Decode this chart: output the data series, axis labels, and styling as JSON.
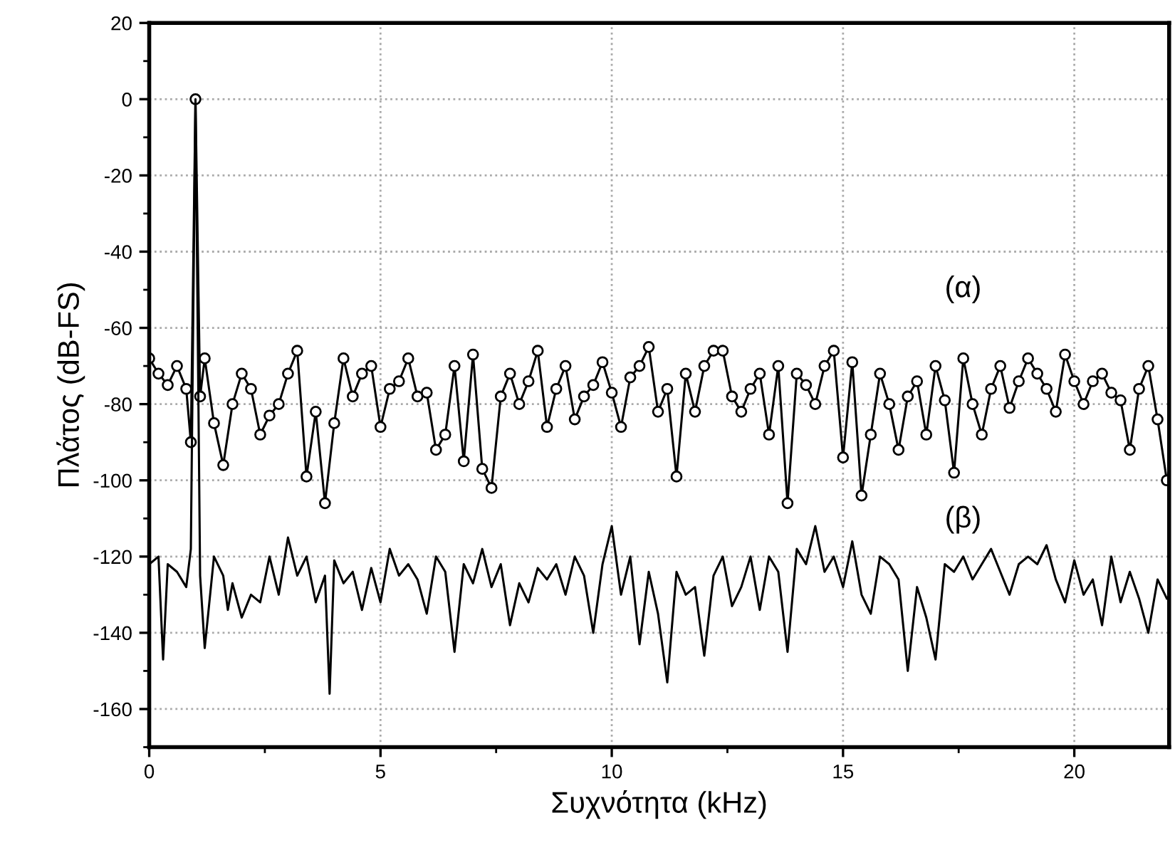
{
  "chart_data": {
    "type": "line",
    "xlabel": "Συχνότητα (kHz)",
    "ylabel": "Πλάτος (dB-FS)",
    "xlim": [
      0,
      22.05
    ],
    "ylim": [
      -170,
      20
    ],
    "xticks": [
      0,
      {
        "value": 2.5,
        "label": null
      },
      5,
      {
        "value": 7.5,
        "label": null
      },
      10,
      {
        "value": 12.5,
        "label": null
      },
      15,
      {
        "value": 17.5,
        "label": null
      },
      20
    ],
    "yticks": [
      {
        "value": -170,
        "label": null
      },
      -160,
      {
        "value": -150,
        "label": null
      },
      -140,
      {
        "value": -130,
        "label": null
      },
      -120,
      {
        "value": -110,
        "label": null
      },
      -100,
      {
        "value": -90,
        "label": null
      },
      -80,
      {
        "value": -70,
        "label": null
      },
      -60,
      {
        "value": -50,
        "label": null
      },
      -40,
      {
        "value": -30,
        "label": null
      },
      -20,
      {
        "value": -10,
        "label": null
      },
      0,
      {
        "value": 10,
        "label": null
      },
      20
    ],
    "grid": true,
    "legend": false,
    "line_style": "solid",
    "annotations": [
      "(α)",
      "(β)"
    ],
    "series": [
      {
        "color": "#000000",
        "marker": "circle",
        "x": [
          0,
          0.2,
          0.4,
          0.6,
          0.8,
          0.9,
          1.0,
          1.1,
          1.2,
          1.4,
          1.6,
          1.8,
          2.0,
          2.2,
          2.4,
          2.6,
          2.8,
          3.0,
          3.2,
          3.4,
          3.6,
          3.8,
          4.0,
          4.2,
          4.4,
          4.6,
          4.8,
          5.0,
          5.2,
          5.4,
          5.6,
          5.8,
          6.0,
          6.2,
          6.4,
          6.6,
          6.8,
          7.0,
          7.2,
          7.4,
          7.6,
          7.8,
          8.0,
          8.2,
          8.4,
          8.6,
          8.8,
          9.0,
          9.2,
          9.4,
          9.6,
          9.8,
          10.0,
          10.2,
          10.4,
          10.6,
          10.8,
          11.0,
          11.2,
          11.4,
          11.6,
          11.8,
          12.0,
          12.2,
          12.4,
          12.6,
          12.8,
          13.0,
          13.2,
          13.4,
          13.6,
          13.8,
          14.0,
          14.2,
          14.4,
          14.6,
          14.8,
          15.0,
          15.2,
          15.4,
          15.6,
          15.8,
          16.0,
          16.2,
          16.4,
          16.6,
          16.8,
          17.0,
          17.2,
          17.4,
          17.6,
          17.8,
          18.0,
          18.2,
          18.4,
          18.6,
          18.8,
          19.0,
          19.2,
          19.4,
          19.6,
          19.8,
          20.0,
          20.2,
          20.4,
          20.6,
          20.8,
          21.0,
          21.2,
          21.4,
          21.6,
          21.8,
          22.0
        ],
        "values": [
          -68,
          -72,
          -75,
          -70,
          -76,
          -90,
          0,
          -78,
          -68,
          -85,
          -96,
          -80,
          -72,
          -76,
          -88,
          -83,
          -80,
          -72,
          -66,
          -99,
          -82,
          -106,
          -85,
          -68,
          -78,
          -72,
          -70,
          -86,
          -76,
          -74,
          -68,
          -78,
          -77,
          -92,
          -88,
          -70,
          -95,
          -67,
          -97,
          -102,
          -78,
          -72,
          -80,
          -74,
          -66,
          -86,
          -76,
          -70,
          -84,
          -78,
          -75,
          -69,
          -77,
          -86,
          -73,
          -70,
          -65,
          -82,
          -76,
          -99,
          -72,
          -82,
          -70,
          -66,
          -66,
          -78,
          -82,
          -76,
          -72,
          -88,
          -70,
          -106,
          -72,
          -75,
          -80,
          -70,
          -66,
          -94,
          -69,
          -104,
          -88,
          -72,
          -80,
          -92,
          -78,
          -74,
          -88,
          -70,
          -79,
          -98,
          -68,
          -80,
          -88,
          -76,
          -70,
          -81,
          -74,
          -68,
          -72,
          -76,
          -82,
          -67,
          -74,
          -80,
          -74,
          -72,
          -77,
          -79,
          -92,
          -76,
          -70,
          -84,
          -100
        ]
      },
      {
        "color": "#000000",
        "marker": "none",
        "x": [
          0,
          0.2,
          0.3,
          0.4,
          0.6,
          0.8,
          0.9,
          1.0,
          1.1,
          1.2,
          1.4,
          1.6,
          1.7,
          1.8,
          2.0,
          2.2,
          2.4,
          2.6,
          2.8,
          3.0,
          3.2,
          3.4,
          3.6,
          3.8,
          3.9,
          4.0,
          4.2,
          4.4,
          4.6,
          4.8,
          5.0,
          5.2,
          5.4,
          5.6,
          5.8,
          6.0,
          6.2,
          6.4,
          6.6,
          6.8,
          7.0,
          7.2,
          7.4,
          7.6,
          7.8,
          8.0,
          8.2,
          8.4,
          8.6,
          8.8,
          9.0,
          9.2,
          9.4,
          9.6,
          9.8,
          10.0,
          10.2,
          10.4,
          10.6,
          10.8,
          11.0,
          11.2,
          11.4,
          11.6,
          11.8,
          12.0,
          12.2,
          12.4,
          12.6,
          12.8,
          13.0,
          13.2,
          13.4,
          13.6,
          13.8,
          14.0,
          14.2,
          14.4,
          14.6,
          14.8,
          15.0,
          15.2,
          15.4,
          15.6,
          15.8,
          16.0,
          16.2,
          16.4,
          16.6,
          16.8,
          17.0,
          17.2,
          17.4,
          17.6,
          17.8,
          18.0,
          18.2,
          18.4,
          18.6,
          18.8,
          19.0,
          19.2,
          19.4,
          19.6,
          19.8,
          20.0,
          20.2,
          20.4,
          20.6,
          20.8,
          21.0,
          21.2,
          21.4,
          21.6,
          21.8,
          22.0
        ],
        "values": [
          -122,
          -120,
          -147,
          -122,
          -124,
          -128,
          -118,
          0,
          -125,
          -144,
          -120,
          -125,
          -134,
          -127,
          -136,
          -130,
          -132,
          -120,
          -130,
          -115,
          -125,
          -120,
          -132,
          -125,
          -156,
          -121,
          -127,
          -124,
          -134,
          -123,
          -132,
          -118,
          -125,
          -122,
          -126,
          -135,
          -120,
          -124,
          -145,
          -122,
          -127,
          -118,
          -128,
          -122,
          -138,
          -127,
          -132,
          -123,
          -126,
          -122,
          -130,
          -120,
          -125,
          -140,
          -122,
          -112,
          -130,
          -120,
          -143,
          -124,
          -135,
          -153,
          -124,
          -130,
          -128,
          -146,
          -125,
          -120,
          -133,
          -128,
          -120,
          -134,
          -120,
          -124,
          -145,
          -118,
          -122,
          -112,
          -124,
          -120,
          -128,
          -116,
          -130,
          -135,
          -120,
          -122,
          -126,
          -150,
          -128,
          -136,
          -147,
          -122,
          -124,
          -120,
          -126,
          -122,
          -118,
          -124,
          -130,
          -122,
          -120,
          -122,
          -117,
          -126,
          -132,
          -121,
          -130,
          -126,
          -138,
          -120,
          -132,
          -124,
          -131,
          -140,
          -126,
          -131
        ]
      }
    ]
  }
}
